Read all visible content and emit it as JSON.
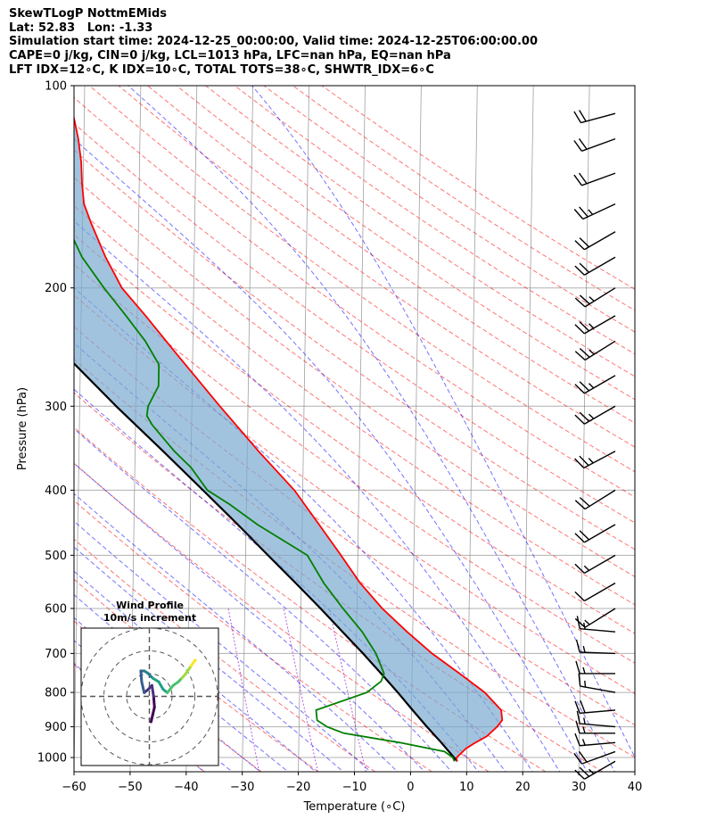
{
  "header": {
    "line1": "SkewTLogP NottmEMids",
    "line2": "Lat: 52.83   Lon: -1.33",
    "line3": "Simulation start time: 2024-12-25_00:00:00, Valid time: 2024-12-25T06:00:00.00",
    "line4": "CAPE=0 j/kg, CIN=0 j/kg, LCL=1013 hPa, LFC=nan hPa, EQ=nan hPa",
    "line5": "LFT IDX=12∘C, K IDX=10∘C, TOTAL TOTS=38∘C, SHWTR_IDX=6∘C"
  },
  "colors": {
    "temperature": "#ff0000",
    "dewpoint": "#008000",
    "parcel": "#000000",
    "cape_fill": "#7aa9d0",
    "dry_adiabat": "#ff0000",
    "moist_adiabat": "#0000ff",
    "mixing_ratio": "#9400d3",
    "isotherm": "#888888"
  },
  "chart_data": {
    "type": "line",
    "subtype": "skew-t log-p",
    "xlabel": "Temperature (∘C)",
    "ylabel": "Pressure (hPa)",
    "xlim": [
      -60,
      40
    ],
    "ylim": [
      1050,
      100
    ],
    "yscale": "log",
    "x_ticks": [
      "−60",
      "−50",
      "−40",
      "−30",
      "−20",
      "−10",
      "0",
      "10",
      "20",
      "30",
      "40"
    ],
    "x_tick_values": [
      -60,
      -50,
      -40,
      -30,
      -20,
      -10,
      0,
      10,
      20,
      30,
      40
    ],
    "y_ticks": [
      "1000",
      "900",
      "800",
      "700",
      "600",
      "500",
      "400",
      "300",
      "200",
      "100"
    ],
    "y_tick_values": [
      1000,
      900,
      800,
      700,
      600,
      500,
      400,
      300,
      200,
      100
    ],
    "series": [
      {
        "key": "temperature",
        "points": [
          [
            1013,
            8.2
          ],
          [
            1000,
            8.2
          ],
          [
            970,
            9.8
          ],
          [
            950,
            11.5
          ],
          [
            930,
            13.5
          ],
          [
            900,
            15.3
          ],
          [
            880,
            16.2
          ],
          [
            850,
            16.0
          ],
          [
            800,
            13.0
          ],
          [
            750,
            8.5
          ],
          [
            700,
            3.5
          ],
          [
            650,
            -1.0
          ],
          [
            600,
            -5.5
          ],
          [
            550,
            -9.5
          ],
          [
            500,
            -13.0
          ],
          [
            450,
            -17.0
          ],
          [
            400,
            -21.5
          ],
          [
            350,
            -28.0
          ],
          [
            300,
            -35.0
          ],
          [
            250,
            -43.0
          ],
          [
            220,
            -48.5
          ],
          [
            200,
            -52.8
          ],
          [
            180,
            -55.8
          ],
          [
            160,
            -58.5
          ],
          [
            150,
            -59.8
          ],
          [
            140,
            -60.2
          ],
          [
            130,
            -60.4
          ],
          [
            120,
            -61.0
          ],
          [
            110,
            -62.0
          ],
          [
            100,
            -63.0
          ]
        ]
      },
      {
        "key": "dewpoint",
        "points": [
          [
            1013,
            7.8
          ],
          [
            1000,
            7.5
          ],
          [
            980,
            6.0
          ],
          [
            950,
            -2.0
          ],
          [
            920,
            -12.0
          ],
          [
            900,
            -15.0
          ],
          [
            880,
            -16.8
          ],
          [
            850,
            -17.0
          ],
          [
            800,
            -8.0
          ],
          [
            770,
            -5.5
          ],
          [
            750,
            -5.0
          ],
          [
            700,
            -6.5
          ],
          [
            650,
            -9.0
          ],
          [
            600,
            -12.5
          ],
          [
            550,
            -16.0
          ],
          [
            500,
            -19.0
          ],
          [
            450,
            -28.0
          ],
          [
            420,
            -33.0
          ],
          [
            400,
            -37.0
          ],
          [
            370,
            -40.0
          ],
          [
            350,
            -43.0
          ],
          [
            320,
            -47.0
          ],
          [
            310,
            -48.0
          ],
          [
            300,
            -47.8
          ],
          [
            280,
            -46.0
          ],
          [
            260,
            -46.0
          ],
          [
            240,
            -48.5
          ],
          [
            220,
            -52.0
          ],
          [
            200,
            -56.0
          ],
          [
            180,
            -60.0
          ],
          [
            160,
            -63.0
          ],
          [
            150,
            -64.5
          ],
          [
            140,
            -66.0
          ],
          [
            130,
            -68.0
          ],
          [
            120,
            -71.0
          ],
          [
            110,
            -75.0
          ],
          [
            100,
            -79.0
          ]
        ]
      },
      {
        "key": "parcel",
        "points": [
          [
            1013,
            8.3
          ],
          [
            1000,
            7.7
          ],
          [
            950,
            5.4
          ],
          [
            900,
            2.8
          ],
          [
            850,
            0.2
          ],
          [
            800,
            -2.5
          ],
          [
            750,
            -5.5
          ],
          [
            700,
            -8.8
          ],
          [
            650,
            -12.5
          ],
          [
            600,
            -16.5
          ],
          [
            550,
            -21.0
          ],
          [
            500,
            -26.0
          ],
          [
            450,
            -31.5
          ],
          [
            400,
            -37.8
          ],
          [
            350,
            -45.0
          ],
          [
            300,
            -53.5
          ],
          [
            250,
            -63.0
          ],
          [
            200,
            -74.0
          ],
          [
            150,
            -87.5
          ],
          [
            120,
            -97.0
          ],
          [
            100,
            -105.0
          ]
        ]
      }
    ],
    "wind_barbs": [
      {
        "p": 1013,
        "speed_kt": 25,
        "dir_deg": 240
      },
      {
        "p": 980,
        "speed_kt": 20,
        "dir_deg": 250
      },
      {
        "p": 950,
        "speed_kt": 15,
        "dir_deg": 265
      },
      {
        "p": 920,
        "speed_kt": 15,
        "dir_deg": 270
      },
      {
        "p": 900,
        "speed_kt": 15,
        "dir_deg": 275
      },
      {
        "p": 850,
        "speed_kt": 20,
        "dir_deg": 265
      },
      {
        "p": 800,
        "speed_kt": 15,
        "dir_deg": 280
      },
      {
        "p": 750,
        "speed_kt": 15,
        "dir_deg": 270
      },
      {
        "p": 700,
        "speed_kt": 15,
        "dir_deg": 272
      },
      {
        "p": 650,
        "speed_kt": 15,
        "dir_deg": 275
      },
      {
        "p": 600,
        "speed_kt": 15,
        "dir_deg": 238
      },
      {
        "p": 550,
        "speed_kt": 10,
        "dir_deg": 240
      },
      {
        "p": 500,
        "speed_kt": 15,
        "dir_deg": 240
      },
      {
        "p": 450,
        "speed_kt": 20,
        "dir_deg": 240
      },
      {
        "p": 400,
        "speed_kt": 20,
        "dir_deg": 238
      },
      {
        "p": 350,
        "speed_kt": 25,
        "dir_deg": 242
      },
      {
        "p": 300,
        "speed_kt": 25,
        "dir_deg": 240
      },
      {
        "p": 270,
        "speed_kt": 25,
        "dir_deg": 240
      },
      {
        "p": 240,
        "speed_kt": 25,
        "dir_deg": 238
      },
      {
        "p": 220,
        "speed_kt": 25,
        "dir_deg": 240
      },
      {
        "p": 200,
        "speed_kt": 25,
        "dir_deg": 238
      },
      {
        "p": 180,
        "speed_kt": 20,
        "dir_deg": 240
      },
      {
        "p": 165,
        "speed_kt": 20,
        "dir_deg": 240
      },
      {
        "p": 150,
        "speed_kt": 25,
        "dir_deg": 245
      },
      {
        "p": 135,
        "speed_kt": 20,
        "dir_deg": 250
      },
      {
        "p": 120,
        "speed_kt": 20,
        "dir_deg": 250
      },
      {
        "p": 110,
        "speed_kt": 20,
        "dir_deg": 255
      }
    ],
    "hodograph": {
      "title_line1": "Wind Profile",
      "title_line2": "10m/s increment",
      "rings_ms": [
        10,
        20,
        30
      ],
      "points_ms": [
        [
          1.0,
          -3.5
        ],
        [
          2.0,
          -2.5
        ],
        [
          3.0,
          -1.5
        ],
        [
          2.5,
          0.0
        ],
        [
          1.5,
          1.5
        ],
        [
          -0.5,
          1.0
        ],
        [
          -3.0,
          0.5
        ],
        [
          -4.5,
          2.0
        ],
        [
          -5.0,
          3.5
        ],
        [
          -3.0,
          3.5
        ],
        [
          -1.0,
          3.2
        ],
        [
          2.0,
          2.5
        ],
        [
          5.5,
          2.0
        ],
        [
          8.0,
          1.0
        ],
        [
          10.5,
          0.5
        ],
        [
          14.0,
          1.5
        ],
        [
          17.0,
          2.0
        ],
        [
          19.0,
          2.5
        ],
        [
          21.0,
          3.0
        ],
        [
          22.5,
          3.5
        ],
        [
          24.5,
          4.2
        ],
        [
          26.0,
          4.7
        ],
        [
          27.0,
          5.0
        ]
      ]
    }
  }
}
